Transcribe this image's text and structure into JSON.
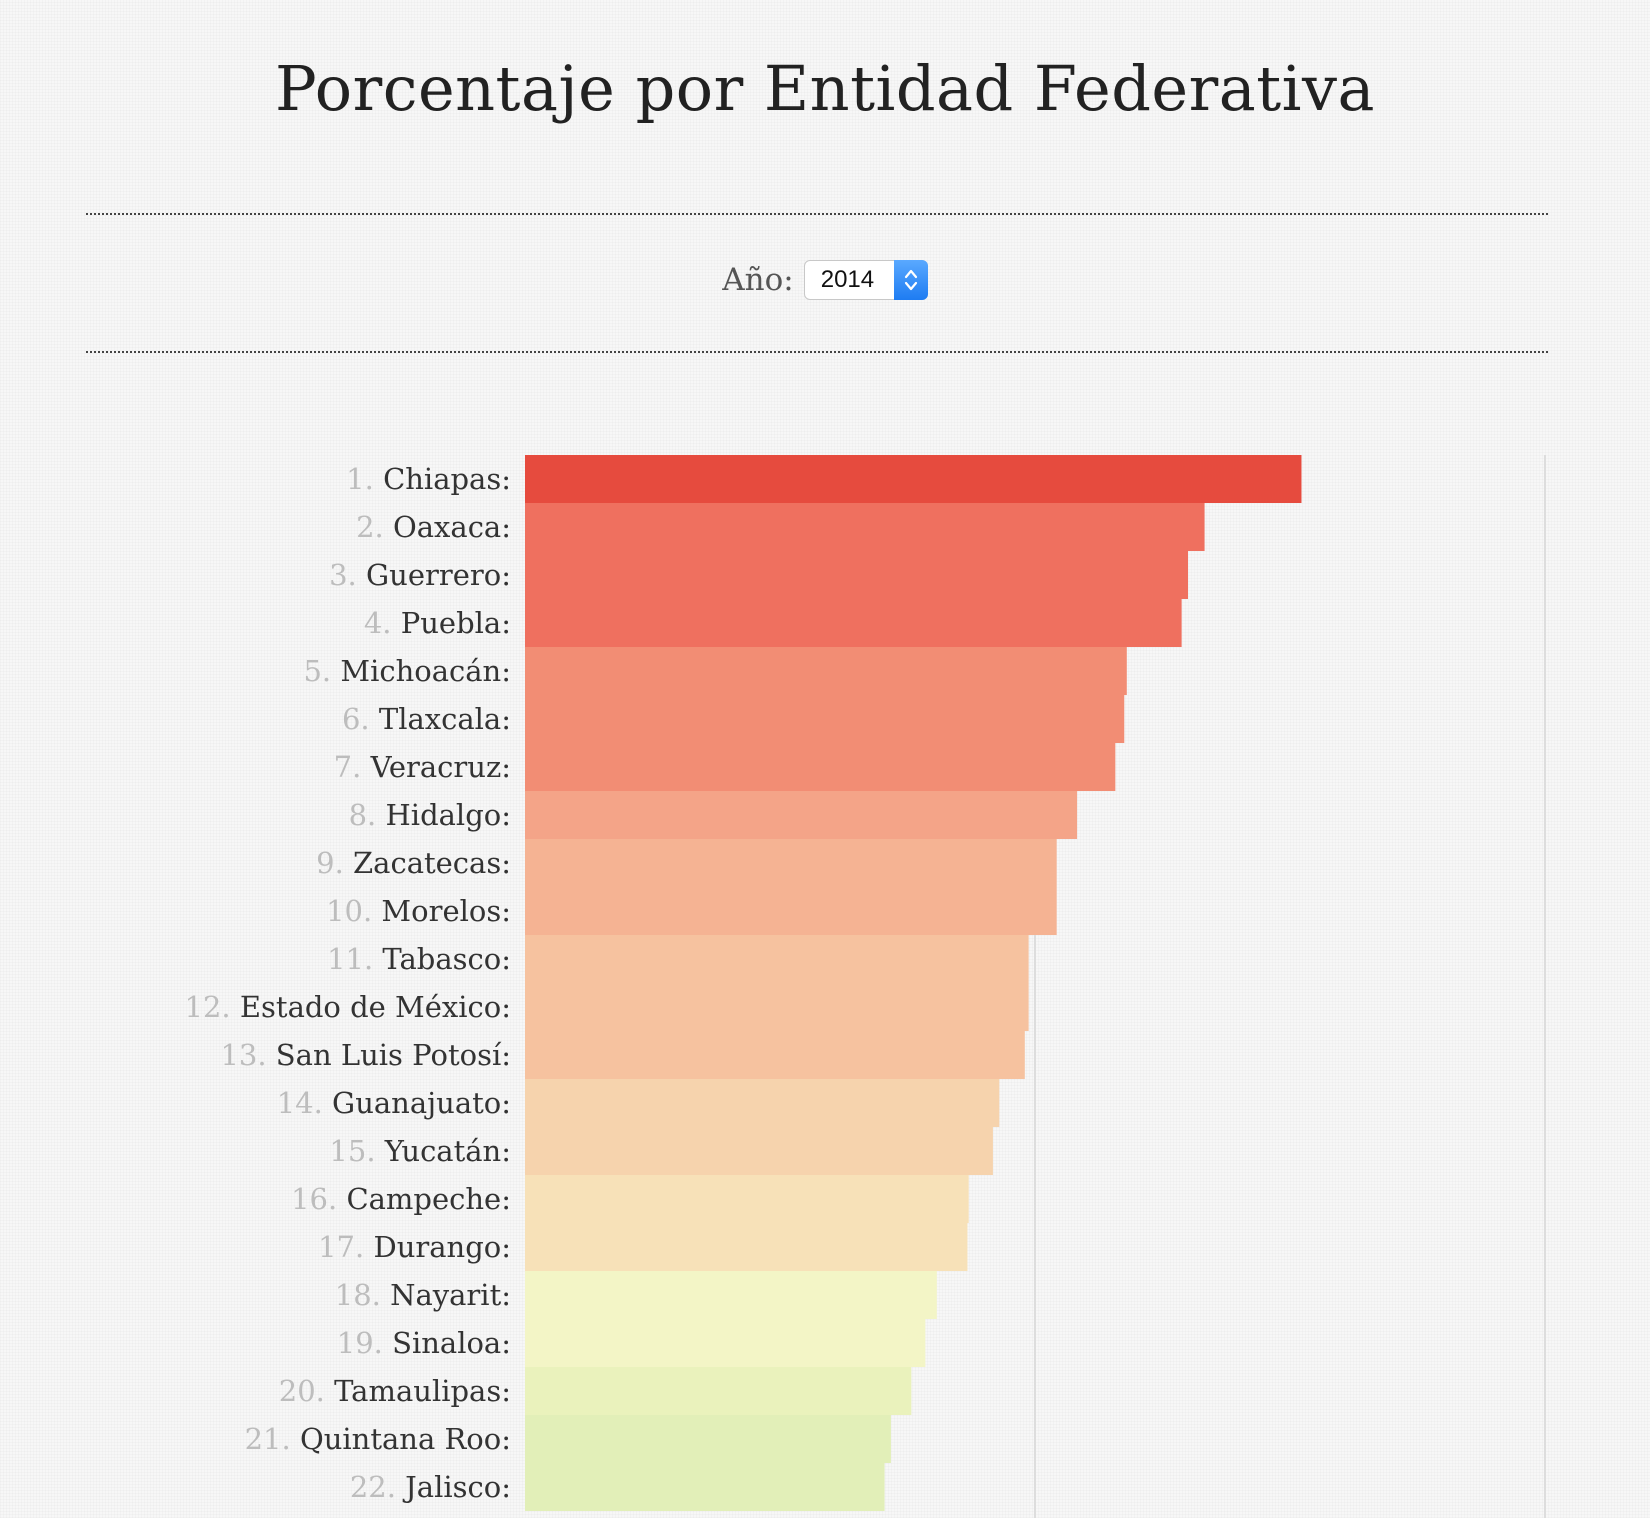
{
  "page": {
    "title": "Porcentaje por Entidad Federativa"
  },
  "filter": {
    "year_label": "Año:",
    "year_value": "2014",
    "stepper_icon": "up-down-chevron-icon"
  },
  "colors": {
    "background": "#f7f7f7",
    "divider": "#444444",
    "rank_text": "#bdbdbd",
    "name_text": "#333333",
    "gridline": "#dddddd",
    "stepper": "#1e7cf2"
  },
  "chart_data": {
    "type": "bar",
    "orientation": "horizontal",
    "title": "",
    "xlabel": "",
    "ylabel": "",
    "xlim": [
      0,
      80
    ],
    "gridlines_x": [
      40,
      80
    ],
    "grid": true,
    "legend": "none",
    "categories": [
      "Chiapas",
      "Oaxaca",
      "Guerrero",
      "Puebla",
      "Michoacán",
      "Tlaxcala",
      "Veracruz",
      "Hidalgo",
      "Zacatecas",
      "Morelos",
      "Tabasco",
      "Estado de México",
      "San Luis Potosí",
      "Guanajuato",
      "Yucatán",
      "Campeche",
      "Durango",
      "Nayarit",
      "Sinaloa",
      "Tamaulipas",
      "Quintana Roo",
      "Jalisco"
    ],
    "ranks": [
      "1.",
      "2.",
      "3.",
      "4.",
      "5.",
      "6.",
      "7.",
      "8.",
      "9.",
      "10.",
      "11.",
      "12.",
      "13.",
      "14.",
      "15.",
      "16.",
      "17.",
      "18.",
      "19.",
      "20.",
      "21.",
      "22."
    ],
    "values": [
      60.9,
      53.3,
      52.0,
      51.5,
      47.2,
      47.0,
      46.3,
      43.3,
      41.7,
      41.7,
      39.5,
      39.5,
      39.2,
      37.2,
      36.7,
      34.8,
      34.7,
      32.3,
      31.4,
      30.3,
      28.7,
      28.2
    ],
    "bar_colors": [
      "#e64b3e",
      "#ef705f",
      "#ef705f",
      "#ef705f",
      "#f28d74",
      "#f28d74",
      "#f28d74",
      "#f4a488",
      "#f5b393",
      "#f5b393",
      "#f6c29f",
      "#f6c29f",
      "#f6c29f",
      "#f6d3ad",
      "#f6d3ad",
      "#f7e1b8",
      "#f7e1b8",
      "#f3f5c6",
      "#f3f5c6",
      "#eaf2bc",
      "#e2efb8",
      "#e2efb8"
    ]
  }
}
